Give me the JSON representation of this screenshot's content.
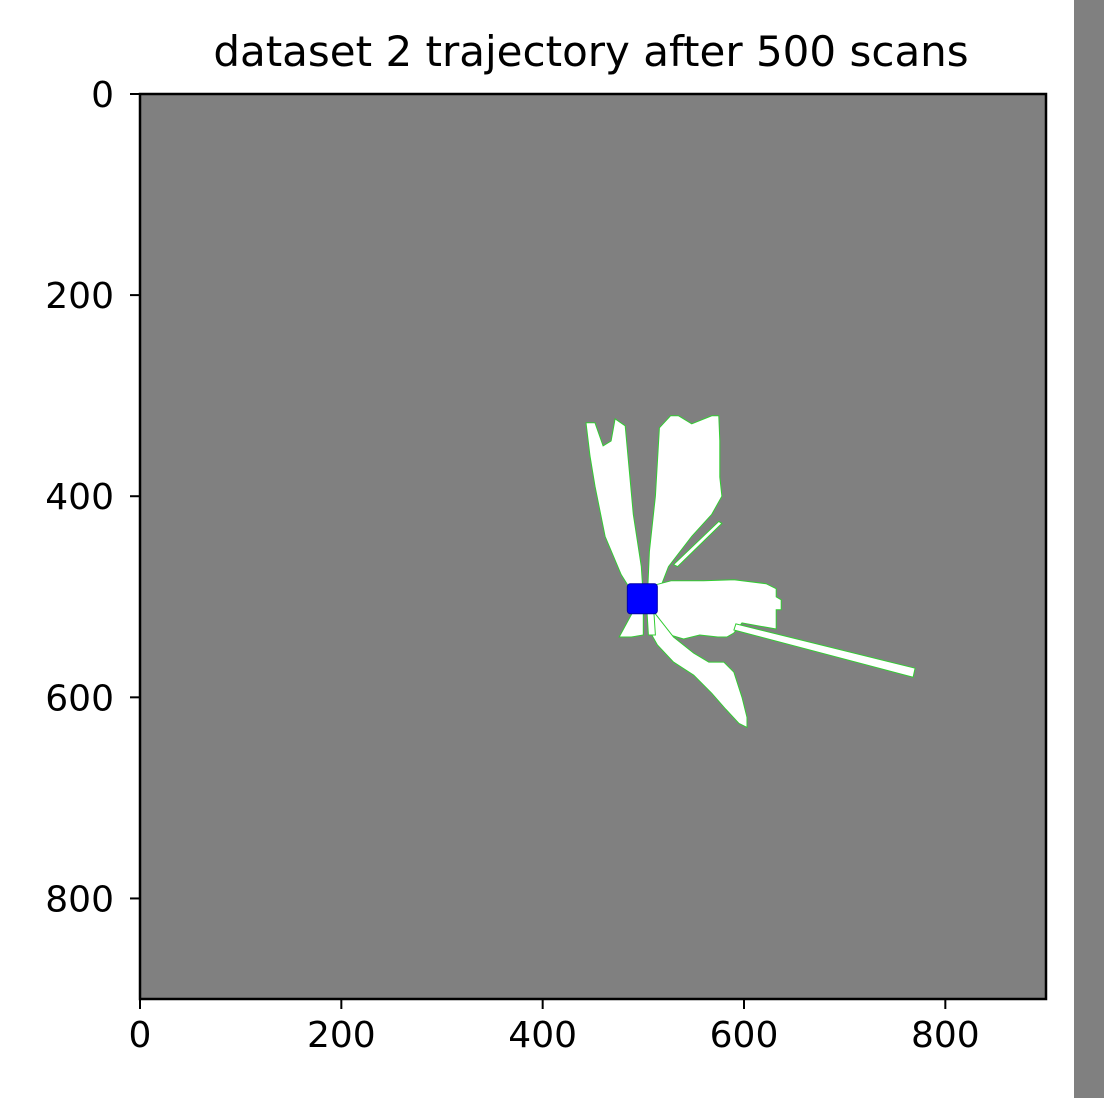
{
  "chart_data": {
    "type": "heatmap",
    "title": "dataset 2 trajectory after 500 scans",
    "xlabel": "",
    "ylabel": "",
    "xlim": [
      0,
      900
    ],
    "ylim": [
      900,
      0
    ],
    "y_inverted": true,
    "x_ticks": [
      0,
      200,
      400,
      600,
      800
    ],
    "y_ticks": [
      0,
      200,
      400,
      600,
      800
    ],
    "grid": false,
    "background_value": "unknown",
    "colors": {
      "unknown": "#808080",
      "free": "#ffffff",
      "wall": "#33cc33",
      "robot": "#0000ff",
      "side_strip": "#808080"
    },
    "free_space_regions": [
      {
        "name": "fan-upper-left",
        "points": [
          [
            443,
            327
          ],
          [
            452,
            327
          ],
          [
            460,
            350
          ],
          [
            468,
            345
          ],
          [
            472,
            323
          ],
          [
            482,
            330
          ],
          [
            490,
            418
          ],
          [
            498,
            470
          ],
          [
            500,
            500
          ],
          [
            493,
            502
          ],
          [
            478,
            478
          ],
          [
            462,
            440
          ],
          [
            452,
            390
          ],
          [
            447,
            360
          ]
        ]
      },
      {
        "name": "fan-upper-right",
        "points": [
          [
            516,
            332
          ],
          [
            527,
            320
          ],
          [
            535,
            320
          ],
          [
            548,
            328
          ],
          [
            568,
            320
          ],
          [
            575,
            320
          ],
          [
            576,
            345
          ],
          [
            576,
            381
          ],
          [
            578,
            400
          ],
          [
            568,
            418
          ],
          [
            548,
            440
          ],
          [
            525,
            470
          ],
          [
            515,
            496
          ],
          [
            504,
            500
          ],
          [
            506,
            455
          ],
          [
            512,
            400
          ]
        ]
      },
      {
        "name": "fan-right",
        "points": [
          [
            505,
            490
          ],
          [
            528,
            484
          ],
          [
            560,
            484
          ],
          [
            590,
            483
          ],
          [
            622,
            487
          ],
          [
            632,
            492
          ],
          [
            632,
            500
          ],
          [
            637,
            503
          ],
          [
            637,
            513
          ],
          [
            632,
            513
          ],
          [
            632,
            532
          ],
          [
            620,
            530
          ],
          [
            598,
            526
          ],
          [
            590,
            536
          ],
          [
            583,
            540
          ],
          [
            574,
            540
          ],
          [
            556,
            538
          ],
          [
            540,
            542
          ],
          [
            520,
            536
          ],
          [
            506,
            518
          ]
        ]
      },
      {
        "name": "fan-lower-right",
        "points": [
          [
            508,
            512
          ],
          [
            530,
            540
          ],
          [
            550,
            556
          ],
          [
            565,
            565
          ],
          [
            580,
            565
          ],
          [
            590,
            575
          ],
          [
            598,
            600
          ],
          [
            603,
            620
          ],
          [
            603,
            630
          ],
          [
            595,
            626
          ],
          [
            582,
            612
          ],
          [
            568,
            596
          ],
          [
            550,
            578
          ],
          [
            530,
            565
          ],
          [
            514,
            548
          ],
          [
            505,
            532
          ]
        ]
      },
      {
        "name": "fan-lower-left",
        "points": [
          [
            495,
            505
          ],
          [
            500,
            505
          ],
          [
            500,
            538
          ],
          [
            488,
            540
          ],
          [
            476,
            540
          ]
        ]
      },
      {
        "name": "fan-lower-center",
        "points": [
          [
            503,
            505
          ],
          [
            510,
            508
          ],
          [
            512,
            538
          ],
          [
            505,
            538
          ]
        ]
      },
      {
        "name": "ray-upper-right",
        "points": [
          [
            530,
            468
          ],
          [
            575,
            425
          ],
          [
            578,
            427
          ],
          [
            534,
            470
          ]
        ]
      },
      {
        "name": "ray-long",
        "points": [
          [
            592,
            527
          ],
          [
            770,
            571
          ],
          [
            768,
            580
          ],
          [
            590,
            533
          ]
        ]
      }
    ],
    "trajectory": {
      "name": "robot-position",
      "x": [
        499
      ],
      "y": [
        502
      ],
      "marker": "square"
    }
  }
}
